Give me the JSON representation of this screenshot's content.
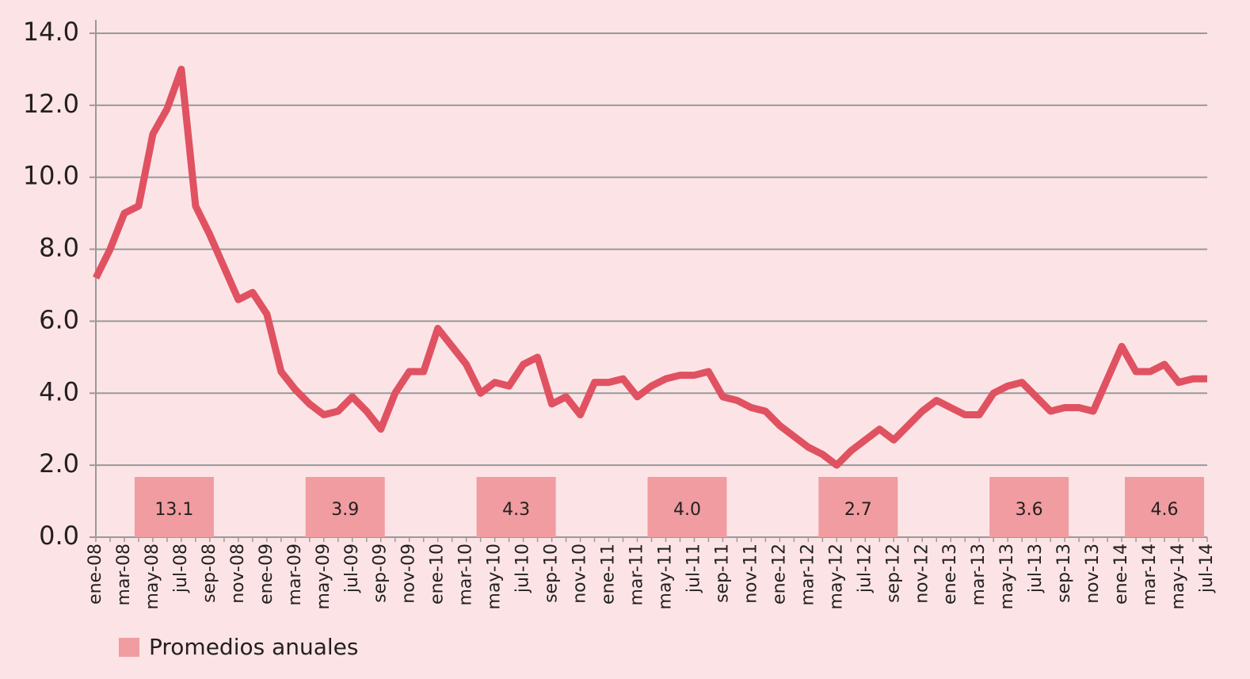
{
  "chart_data": {
    "type": "line",
    "categories": [
      "ene-08",
      null,
      "mar-08",
      null,
      "may-08",
      null,
      "jul-08",
      null,
      "sep-08",
      null,
      "nov-08",
      null,
      "ene-09",
      null,
      "mar-09",
      null,
      "may-09",
      null,
      "jul-09",
      null,
      "sep-09",
      null,
      "nov-09",
      null,
      "ene-10",
      null,
      "mar-10",
      null,
      "may-10",
      null,
      "jul-10",
      null,
      "sep-10",
      null,
      "nov-10",
      null,
      "ene-11",
      null,
      "mar-11",
      null,
      "may-11",
      null,
      "jul-11",
      null,
      "sep-11",
      null,
      "nov-11",
      null,
      "ene-12",
      null,
      "mar-12",
      null,
      "may-12",
      null,
      "jul-12",
      null,
      "sep-12",
      null,
      "nov-12",
      null,
      "ene-13",
      null,
      "mar-13",
      null,
      "may-13",
      null,
      "jul-13",
      null,
      "sep-13",
      null,
      "nov-13",
      null,
      "ene-14",
      null,
      "mar-14",
      null,
      "may-14",
      null,
      "jul-14"
    ],
    "values": [
      7.2,
      8.0,
      9.0,
      9.2,
      11.2,
      11.9,
      13.0,
      9.2,
      8.4,
      7.5,
      6.6,
      6.8,
      6.2,
      4.6,
      4.1,
      3.7,
      3.4,
      3.5,
      3.9,
      3.5,
      3.0,
      4.0,
      4.6,
      4.6,
      5.8,
      5.3,
      4.8,
      4.0,
      4.3,
      4.2,
      4.8,
      5.0,
      3.7,
      3.9,
      3.4,
      4.3,
      4.3,
      4.4,
      3.9,
      4.2,
      4.4,
      4.5,
      4.5,
      4.6,
      3.9,
      3.8,
      3.6,
      3.5,
      3.1,
      2.8,
      2.5,
      2.3,
      2.0,
      2.4,
      2.7,
      3.0,
      2.7,
      3.1,
      3.5,
      3.8,
      3.6,
      3.4,
      3.4,
      4.0,
      4.2,
      4.3,
      3.9,
      3.5,
      3.6,
      3.6,
      3.5,
      4.4,
      5.3,
      4.6,
      4.6,
      4.8,
      4.3,
      4.4,
      4.4
    ],
    "color": "#e05261",
    "ylim": [
      0,
      14
    ],
    "yticks": [
      {
        "value": 0,
        "label": "0.0"
      },
      {
        "value": 2,
        "label": "2.0"
      },
      {
        "value": 4,
        "label": "4.0"
      },
      {
        "value": 6,
        "label": "6.0"
      },
      {
        "value": 8,
        "label": "8.0"
      },
      {
        "value": 10,
        "label": "10.0"
      },
      {
        "value": 12,
        "label": "12.0"
      },
      {
        "value": 14,
        "label": "14.0"
      }
    ],
    "grid": true,
    "annual_averages": {
      "name": "Promedios anuales",
      "color": "#f09ca0",
      "values": [
        13.1,
        3.9,
        4.3,
        4.0,
        2.7,
        3.6,
        4.6
      ],
      "value_labels": [
        "13.1",
        "3.9",
        "4.3",
        "4.0",
        "2.7",
        "3.6",
        "4.6"
      ]
    }
  }
}
